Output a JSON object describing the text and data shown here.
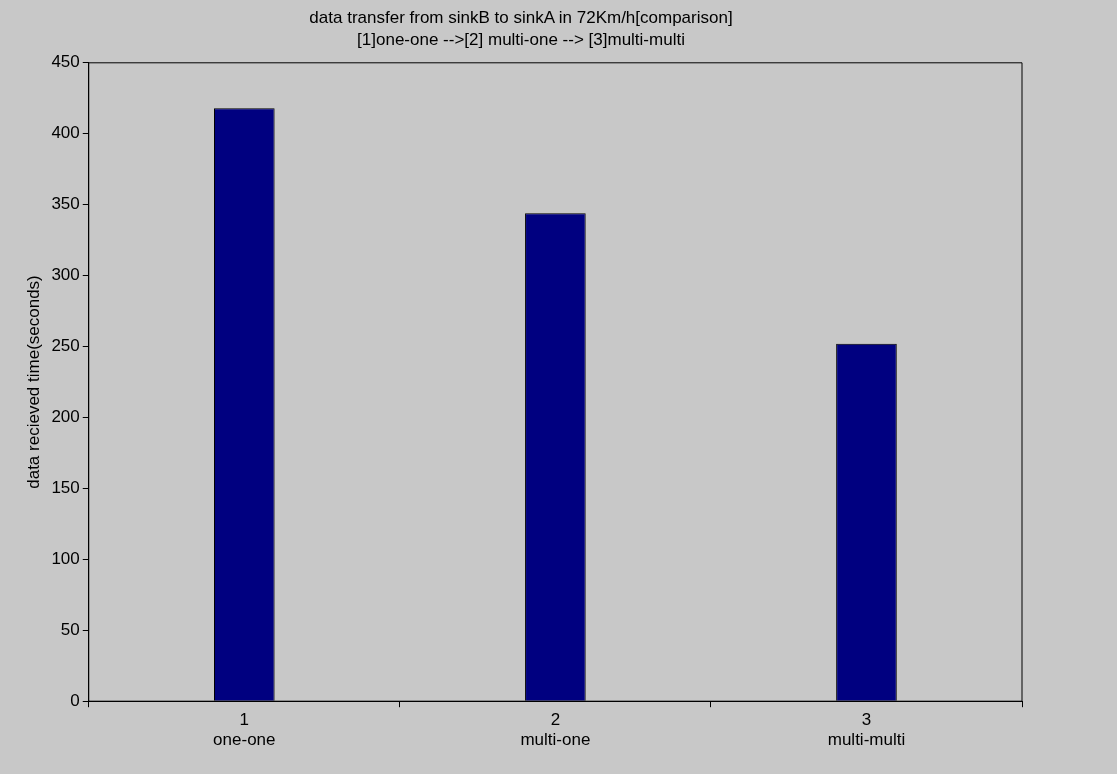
{
  "chart_data": {
    "type": "bar",
    "title": "data transfer from sinkB to sinkA in 72Km/h[comparison]",
    "subtitle": "[1]one-one -->[2] multi-one --> [3]multi-multi",
    "ylabel": "data recieved time(seconds)",
    "categories": [
      "1\none-one",
      "2\nmulti-one",
      "3\nmulti-multi"
    ],
    "values": [
      418,
      344,
      252
    ],
    "color": "#000080",
    "ylim": [
      0,
      450
    ],
    "yticks": [
      0,
      50,
      100,
      150,
      200,
      250,
      300,
      350,
      400,
      450
    ],
    "grid": false,
    "legend": false
  }
}
